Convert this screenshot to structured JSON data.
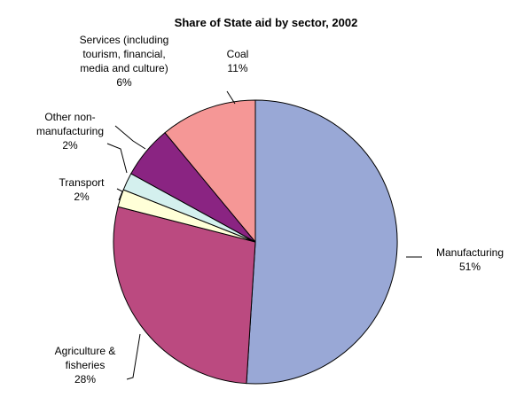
{
  "chart_data": {
    "type": "pie",
    "title": "Share of State aid by sector, 2002",
    "slices": [
      {
        "name": "Manufacturing",
        "label_lines": [
          "Manufacturing"
        ],
        "value": 51,
        "value_label": "51%",
        "color": "#99A8D6"
      },
      {
        "name": "Agriculture & fisheries",
        "label_lines": [
          "Agriculture &",
          "fisheries"
        ],
        "value": 28,
        "value_label": "28%",
        "color": "#BB4A80"
      },
      {
        "name": "Transport",
        "label_lines": [
          "Transport"
        ],
        "value": 2,
        "value_label": "2%",
        "color": "#FFFFD8"
      },
      {
        "name": "Other non-manufacturing",
        "label_lines": [
          "Other non-",
          "manufacturing"
        ],
        "value": 2,
        "value_label": "2%",
        "color": "#D4F0EE"
      },
      {
        "name": "Services (including tourism, financial, media and culture)",
        "label_lines": [
          "Services (including",
          "tourism, financial,",
          "media and culture)"
        ],
        "value": 6,
        "value_label": "6%",
        "color": "#8A2482"
      },
      {
        "name": "Coal",
        "label_lines": [
          "Coal"
        ],
        "value": 11,
        "value_label": "11%",
        "color": "#F59796"
      }
    ]
  }
}
